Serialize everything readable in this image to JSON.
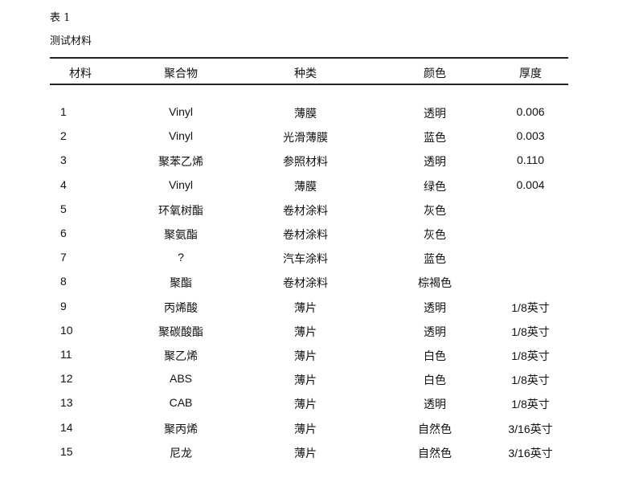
{
  "table_label": "表 1",
  "table_caption": "测试材料",
  "headers": [
    "材料",
    "聚合物",
    "种类",
    "颜色",
    "厚度"
  ],
  "rows": [
    [
      "1",
      "Vinyl",
      "薄膜",
      "透明",
      "0.006"
    ],
    [
      "2",
      "Vinyl",
      "光滑薄膜",
      "蓝色",
      "0.003"
    ],
    [
      "3",
      "聚苯乙烯",
      "参照材料",
      "透明",
      "0.110"
    ],
    [
      "4",
      "Vinyl",
      "薄膜",
      "绿色",
      "0.004"
    ],
    [
      "5",
      "环氧树酯",
      "卷材涂料",
      "灰色",
      ""
    ],
    [
      "6",
      "聚氨酯",
      "卷材涂料",
      "灰色",
      ""
    ],
    [
      "7",
      "?",
      "汽车涂料",
      "蓝色",
      ""
    ],
    [
      "8",
      "聚酯",
      "卷材涂料",
      "棕褐色",
      ""
    ],
    [
      "9",
      "丙烯酸",
      "薄片",
      "透明",
      "1/8英寸"
    ],
    [
      "10",
      "聚碳酸酯",
      "薄片",
      "透明",
      "1/8英寸"
    ],
    [
      "11",
      "聚乙烯",
      "薄片",
      "白色",
      "1/8英寸"
    ],
    [
      "12",
      "ABS",
      "薄片",
      "白色",
      "1/8英寸"
    ],
    [
      "13",
      "CAB",
      "薄片",
      "透明",
      "1/8英寸"
    ],
    [
      "14",
      "聚丙烯",
      "薄片",
      "自然色",
      "3/16英寸"
    ],
    [
      "15",
      "尼龙",
      "薄片",
      "自然色",
      "3/16英寸"
    ]
  ]
}
